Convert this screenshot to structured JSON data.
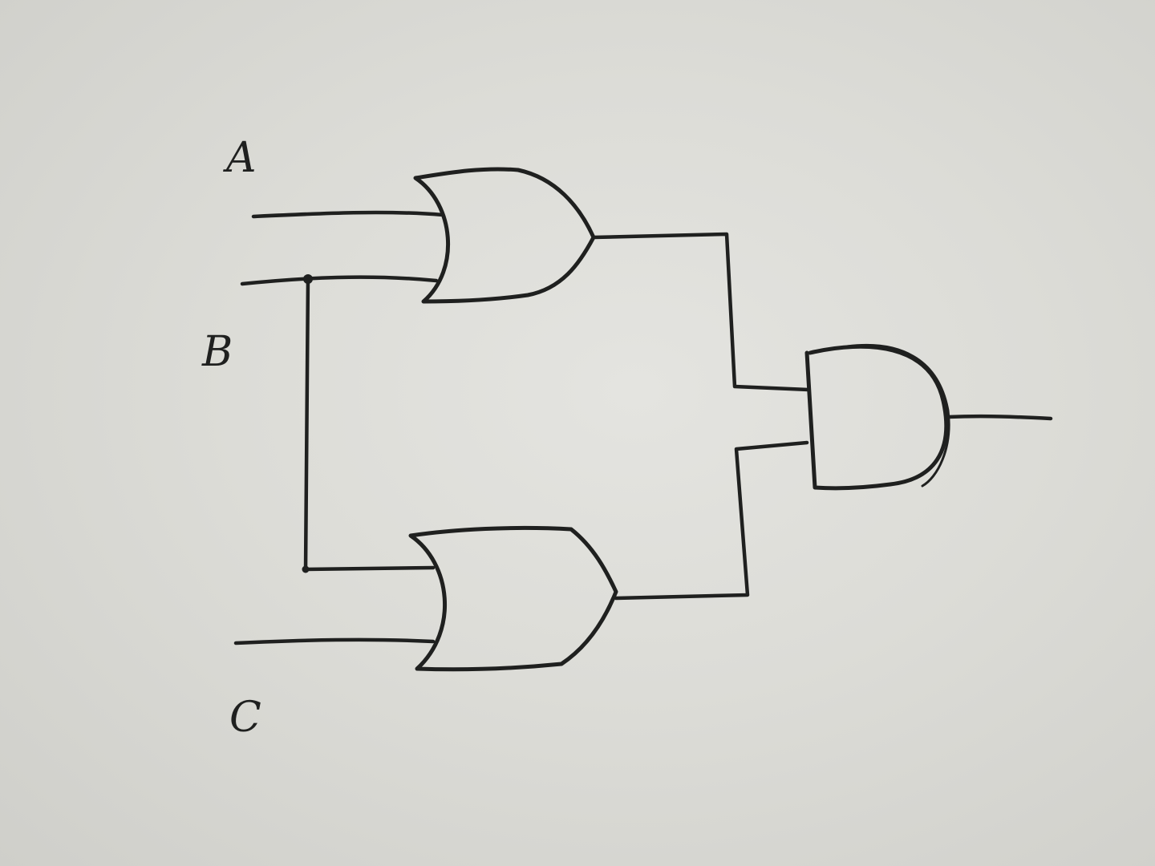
{
  "labels": {
    "input_a": "A",
    "input_b": "B",
    "input_c": "C"
  },
  "colors": {
    "ink": "#1f201f",
    "paper": "#dcdcd7"
  },
  "gates": {
    "top_gate": "or-gate",
    "bottom_gate": "or-gate",
    "output_gate": "and-gate"
  }
}
